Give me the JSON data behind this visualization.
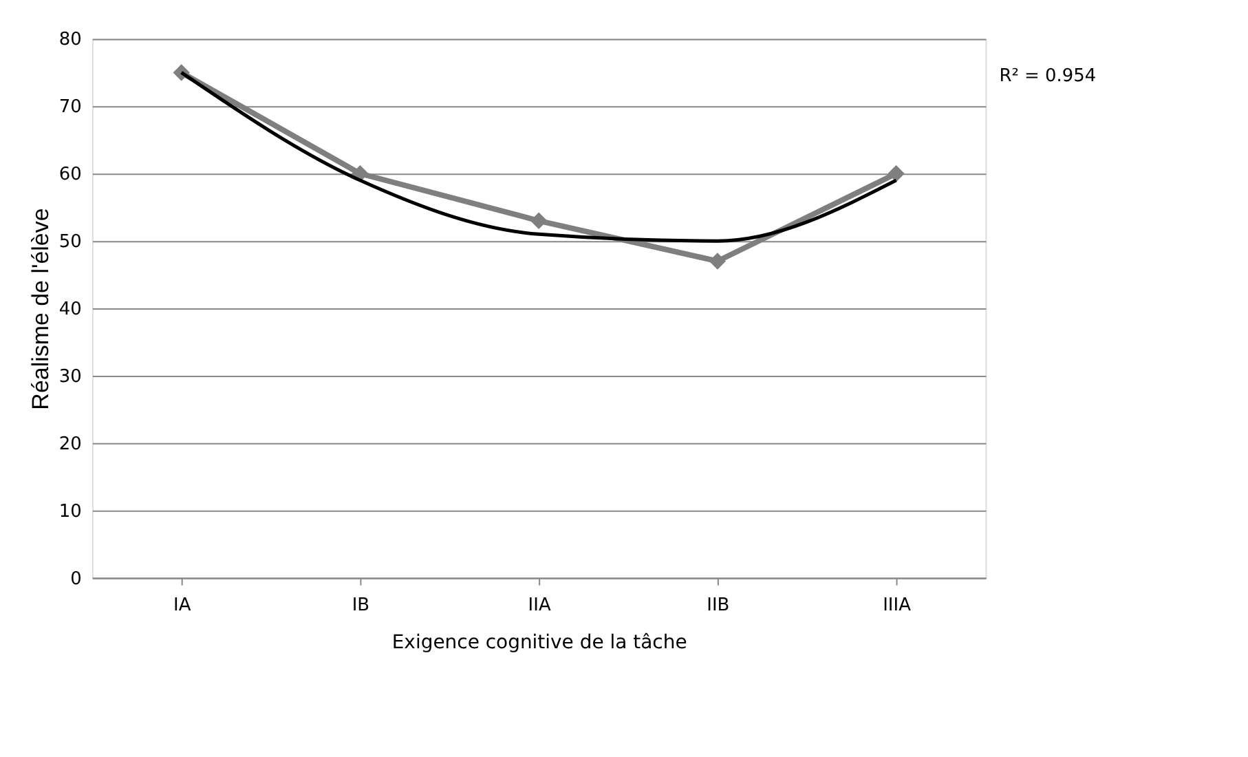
{
  "chart_data": {
    "type": "line",
    "xlabel": "Exigence cognitive de la tâche",
    "ylabel": "Réalisme de l'élève",
    "categories": [
      "IA",
      "IB",
      "IIA",
      "IIB",
      "IIIA"
    ],
    "series": [
      {
        "color": "#7f7f7f",
        "values": [
          75,
          60,
          53,
          47,
          60
        ],
        "marker": "diamond"
      },
      {
        "type": "line",
        "color": "#000000",
        "values": [
          75,
          59,
          51,
          50,
          59
        ],
        "marker": "none"
      }
    ],
    "ylim": [
      0,
      80
    ],
    "yticks": [
      0,
      10,
      20,
      30,
      40,
      50,
      60,
      70,
      80
    ],
    "grid": "y",
    "legend": false,
    "line_style": "solid",
    "annotations": [
      "R² = 0.954"
    ]
  }
}
